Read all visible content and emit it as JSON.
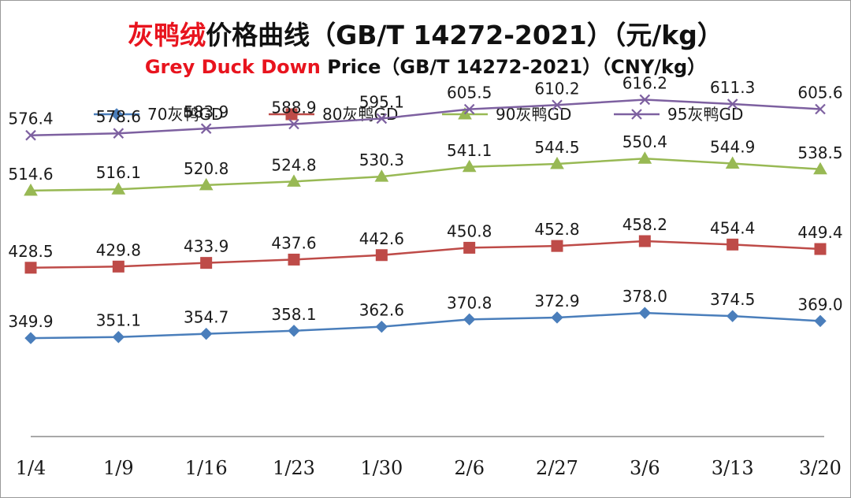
{
  "chart_data": {
    "type": "line",
    "title_cn": {
      "highlight": "灰鸭绒",
      "rest": "价格曲线（GB/T 14272-2021）（元/kg）",
      "highlight_color": "#e8141e",
      "rest_color": "#111111"
    },
    "title_en": {
      "highlight": "Grey Duck Down",
      "rest": " Price（GB/T 14272-2021）（CNY/kg）",
      "highlight_color": "#e8141e",
      "rest_color": "#111111"
    },
    "categories": [
      "1/4",
      "1/9",
      "1/16",
      "1/23",
      "1/30",
      "2/6",
      "2/27",
      "3/6",
      "3/13",
      "3/20"
    ],
    "series": [
      {
        "name": "70灰鸭GD",
        "color": "#4a7ebb",
        "marker": "diamond",
        "values": [
          349.9,
          351.1,
          354.7,
          358.1,
          362.6,
          370.8,
          372.9,
          378.0,
          374.5,
          369.0
        ],
        "labels": [
          "349.9",
          "351.1",
          "354.7",
          "358.1",
          "362.6",
          "370.8",
          "372.9",
          "378.0",
          "374.5",
          "369.0"
        ]
      },
      {
        "name": "80灰鸭GD",
        "color": "#be4b48",
        "marker": "square",
        "values": [
          428.5,
          429.8,
          433.9,
          437.6,
          442.6,
          450.8,
          452.8,
          458.2,
          454.4,
          449.4
        ],
        "labels": [
          "428.5",
          "429.8",
          "433.9",
          "437.6",
          "442.6",
          "450.8",
          "452.8",
          "458.2",
          "454.4",
          "449.4"
        ]
      },
      {
        "name": "90灰鸭GD",
        "color": "#98b954",
        "marker": "triangle",
        "values": [
          514.6,
          516.1,
          520.8,
          524.8,
          530.3,
          541.1,
          544.5,
          550.4,
          544.9,
          538.5
        ],
        "labels": [
          "514.6",
          "516.1",
          "520.8",
          "524.8",
          "530.3",
          "541.1",
          "544.5",
          "550.4",
          "544.9",
          "538.5"
        ]
      },
      {
        "name": "95灰鸭GD",
        "color": "#7d60a0",
        "marker": "x",
        "values": [
          576.4,
          578.6,
          583.9,
          588.9,
          595.1,
          605.5,
          610.2,
          616.2,
          611.3,
          605.6
        ],
        "labels": [
          "576.4",
          "578.6",
          "583.9",
          "588.9",
          "595.1",
          "605.5",
          "610.2",
          "616.2",
          "611.3",
          "605.6"
        ]
      }
    ],
    "ylim": [
      240,
      665
    ],
    "grid": false,
    "legend": "top"
  }
}
